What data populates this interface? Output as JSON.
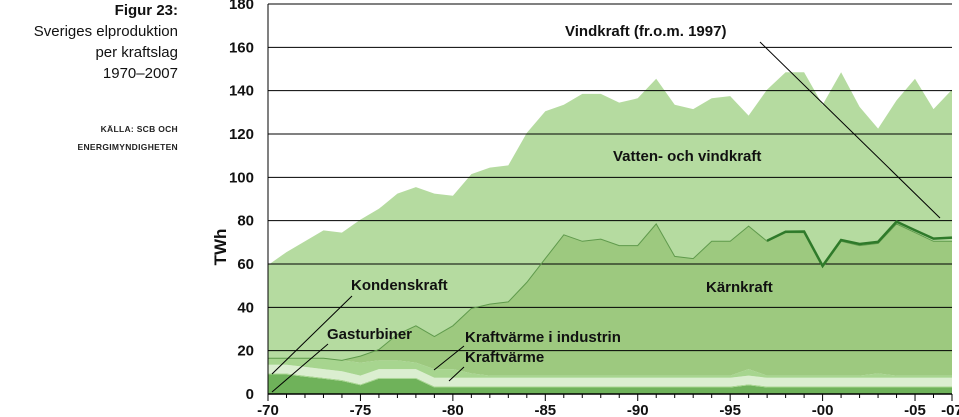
{
  "sidebar": {
    "figure_label": "Figur 23:",
    "subtitle_lines": [
      "Sveriges elproduktion",
      "per kraftslag",
      "1970–2007"
    ],
    "source_lines": [
      "KÄLLA: SCB OCH",
      "ENERGIMYNDIGHETEN"
    ]
  },
  "chart_data": {
    "type": "area",
    "stacked": true,
    "title": "Figur 23: Sveriges elproduktion per kraftslag 1970–2007",
    "ylabel": "TWh",
    "xlabel": "",
    "ylim": [
      0,
      180
    ],
    "xlim": [
      1970,
      2007
    ],
    "grid": true,
    "x": [
      1970,
      1971,
      1972,
      1973,
      1974,
      1975,
      1976,
      1977,
      1978,
      1979,
      1980,
      1981,
      1982,
      1983,
      1984,
      1985,
      1986,
      1987,
      1988,
      1989,
      1990,
      1991,
      1992,
      1993,
      1994,
      1995,
      1996,
      1997,
      1998,
      1999,
      2000,
      2001,
      2002,
      2003,
      2004,
      2005,
      2006,
      2007
    ],
    "x_tick_labels": [
      "-70",
      "-75",
      "-80",
      "-85",
      "-90",
      "-95",
      "-00",
      "-05",
      "-07"
    ],
    "x_tick_values": [
      1970,
      1975,
      1980,
      1985,
      1990,
      1995,
      2000,
      2005,
      2007
    ],
    "y_tick_labels": [
      "0",
      "20",
      "40",
      "60",
      "80",
      "100",
      "120",
      "140",
      "160",
      "180"
    ],
    "y_tick_values": [
      0,
      20,
      40,
      60,
      80,
      100,
      120,
      140,
      160,
      180
    ],
    "series": [
      {
        "name": "Kraftvärme",
        "color": "#6fb25a",
        "values": [
          9,
          9,
          8,
          7,
          6,
          4,
          7,
          7,
          7,
          3,
          3,
          3,
          3,
          3,
          3,
          3,
          3,
          3,
          3,
          3,
          3,
          3,
          3,
          3,
          3,
          3,
          4,
          3,
          3,
          3,
          3,
          3,
          3,
          3,
          3,
          3,
          3,
          3
        ]
      },
      {
        "name": "Gasturbiner",
        "color": "#a7d58f",
        "values": [
          0.5,
          0.5,
          0.5,
          0.5,
          0.5,
          0.5,
          0.5,
          0.5,
          0.5,
          0.5,
          0.5,
          0.5,
          0.5,
          0.5,
          0.5,
          0.5,
          0.5,
          0.5,
          0.5,
          0.5,
          0.5,
          0.5,
          0.5,
          0.5,
          0.5,
          0.5,
          0.5,
          0.5,
          0.5,
          0.5,
          0.5,
          0.5,
          0.5,
          0.5,
          0.5,
          0.5,
          0.5,
          0.5
        ]
      },
      {
        "name": "Kraftvärme i industrin",
        "color": "#dbeed0",
        "values": [
          4,
          4,
          4,
          4,
          4,
          4,
          4,
          4,
          4,
          4,
          4,
          4,
          4,
          4,
          4,
          4,
          4,
          4,
          4,
          4,
          4,
          4,
          4,
          4,
          4,
          4,
          4,
          4,
          4,
          4,
          4,
          4,
          4,
          4,
          4,
          4,
          4,
          4
        ]
      },
      {
        "name": "Kondenskraft",
        "color": "#a7d58f",
        "values": [
          3,
          3,
          4,
          5,
          5,
          6,
          4,
          4,
          3,
          4,
          4,
          2,
          1,
          1,
          1,
          1,
          1,
          1,
          1,
          1,
          1,
          1,
          1,
          1,
          1,
          1,
          3,
          1,
          1,
          1,
          1,
          1,
          1,
          2,
          1,
          1,
          1,
          1
        ]
      },
      {
        "name": "Kärnkraft",
        "color": "#9dc97f",
        "values": [
          0,
          0,
          0,
          0,
          0,
          3,
          5,
          12,
          17,
          15,
          20,
          30,
          33,
          34,
          43,
          54,
          65,
          62,
          63,
          60,
          60,
          70,
          55,
          54,
          62,
          62,
          66,
          62,
          66,
          66,
          50,
          62,
          60,
          60,
          70,
          66,
          62,
          62
        ]
      },
      {
        "name": "Vatten- och vindkraft",
        "color": "#b5dba0",
        "values": [
          43,
          49,
          54,
          59,
          59,
          63,
          65,
          65,
          64,
          66,
          60,
          62,
          63,
          63,
          69,
          68,
          60,
          68,
          67,
          66,
          68,
          67,
          70,
          69,
          66,
          67,
          51,
          70,
          74,
          74,
          75,
          78,
          64,
          53,
          57,
          71,
          61,
          70
        ]
      },
      {
        "name": "Vindkraft (fr.o.m. 1997)",
        "color": "#2f7a2a",
        "values": [
          0,
          0,
          0,
          0,
          0,
          0,
          0,
          0,
          0,
          0,
          0,
          0,
          0,
          0,
          0,
          0,
          0,
          0,
          0,
          0,
          0,
          0,
          0,
          0,
          0,
          0,
          0,
          0.2,
          0.3,
          0.4,
          0.5,
          0.5,
          0.6,
          0.6,
          0.9,
          0.9,
          1,
          1.4
        ]
      }
    ],
    "annotations": [
      {
        "text": "Vindkraft (fr.o.m. 1997)",
        "target_series": "Vindkraft (fr.o.m. 1997)"
      },
      {
        "text": "Vatten- och vindkraft",
        "target_series": "Vatten- och vindkraft"
      },
      {
        "text": "Kärnkraft",
        "target_series": "Kärnkraft"
      },
      {
        "text": "Kondenskraft",
        "target_series": "Kondenskraft"
      },
      {
        "text": "Gasturbiner",
        "target_series": "Gasturbiner"
      },
      {
        "text": "Kraftvärme i industrin",
        "target_series": "Kraftvärme i industrin"
      },
      {
        "text": "Kraftvärme",
        "target_series": "Kraftvärme"
      }
    ]
  }
}
